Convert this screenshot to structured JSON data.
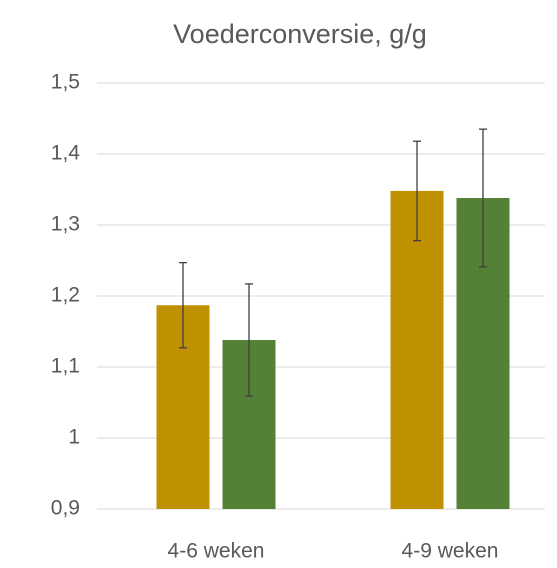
{
  "chart_data": {
    "type": "bar",
    "title": "Voederconversie, g/g",
    "categories": [
      "4-6 weken",
      "4-9 weken"
    ],
    "series": [
      {
        "color": "#bf9000",
        "values": [
          1.187,
          1.348
        ],
        "errors": [
          0.06,
          0.07
        ]
      },
      {
        "color": "#538135",
        "values": [
          1.138,
          1.338
        ],
        "errors": [
          0.079,
          0.097
        ]
      }
    ],
    "ylim": [
      0.9,
      1.5
    ],
    "yticks": [
      {
        "value": 0.9,
        "label": "0,9"
      },
      1,
      {
        "value": 1.1,
        "label": "1,1"
      },
      {
        "value": 1.2,
        "label": "1,2"
      },
      {
        "value": 1.3,
        "label": "1,3"
      },
      {
        "value": 1.4,
        "label": "1,4"
      },
      {
        "value": 1.5,
        "label": "1,5"
      }
    ],
    "grid": true
  }
}
